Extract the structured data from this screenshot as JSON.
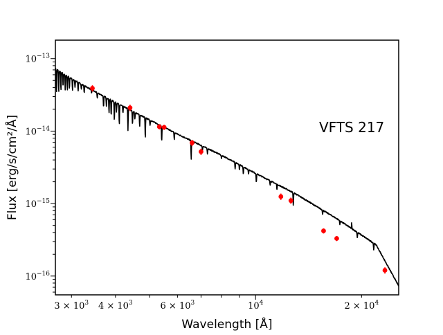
{
  "chart_data": {
    "type": "scatter",
    "title": "",
    "annotation": "VFTS 217",
    "xlabel": "Wavelength [Å]",
    "ylabel": "Flux [erg/s/cm²/Å]",
    "xscale": "log",
    "yscale": "log",
    "xlim": [
      2700,
      25500
    ],
    "ylim": [
      5.5e-17,
      1.8e-13
    ],
    "grid": false,
    "legend": "none",
    "xticks": [
      {
        "value": 3000,
        "base": "3 × 10",
        "exp": "3"
      },
      {
        "value": 4000,
        "base": "4 × 10",
        "exp": "3"
      },
      {
        "value": 6000,
        "base": "6 × 10",
        "exp": "3"
      },
      {
        "value": 10000,
        "base": "10",
        "exp": "4"
      },
      {
        "value": 20000,
        "base": "2 × 10",
        "exp": "4"
      }
    ],
    "yticks": [
      {
        "value": 1e-16,
        "base": "10",
        "exp": "−16"
      },
      {
        "value": 1e-15,
        "base": "10",
        "exp": "−15"
      },
      {
        "value": 1e-14,
        "base": "10",
        "exp": "−14"
      },
      {
        "value": 1e-13,
        "base": "10",
        "exp": "−13"
      }
    ],
    "series": [
      {
        "kind": "model_spectrum",
        "color": "#000000",
        "x": [
          2700,
          3000,
          3500,
          4500,
          6000,
          8000,
          10000,
          13000,
          17000,
          22000,
          25500
        ],
        "y": [
          7.3e-14,
          5.3e-14,
          3.5e-14,
          1.85e-14,
          9.1e-15,
          4.65e-15,
          2.62e-15,
          1.36e-15,
          6.2e-16,
          2.7e-16,
          7.3e-17
        ],
        "absorption_lines": [
          {
            "x": 2720,
            "depth": 0.55
          },
          {
            "x": 2760,
            "depth": 0.5
          },
          {
            "x": 2800,
            "depth": 0.45
          },
          {
            "x": 2840,
            "depth": 0.35
          },
          {
            "x": 2880,
            "depth": 0.4
          },
          {
            "x": 2920,
            "depth": 0.35
          },
          {
            "x": 2960,
            "depth": 0.3
          },
          {
            "x": 3020,
            "depth": 0.3
          },
          {
            "x": 3070,
            "depth": 0.2
          },
          {
            "x": 3133,
            "depth": 0.25
          },
          {
            "x": 3200,
            "depth": 0.15
          },
          {
            "x": 3260,
            "depth": 0.2
          },
          {
            "x": 3420,
            "depth": 0.12
          },
          {
            "x": 3550,
            "depth": 0.15
          },
          {
            "x": 3700,
            "depth": 0.3
          },
          {
            "x": 3770,
            "depth": 0.25
          },
          {
            "x": 3835,
            "depth": 0.35
          },
          {
            "x": 3889,
            "depth": 0.4
          },
          {
            "x": 3970,
            "depth": 0.45
          },
          {
            "x": 4026,
            "depth": 0.25
          },
          {
            "x": 4101,
            "depth": 0.5
          },
          {
            "x": 4200,
            "depth": 0.2
          },
          {
            "x": 4340,
            "depth": 0.5
          },
          {
            "x": 4471,
            "depth": 0.35
          },
          {
            "x": 4541,
            "depth": 0.2
          },
          {
            "x": 4686,
            "depth": 0.3
          },
          {
            "x": 4861,
            "depth": 0.5
          },
          {
            "x": 5015,
            "depth": 0.15
          },
          {
            "x": 5412,
            "depth": 0.4
          },
          {
            "x": 5876,
            "depth": 0.2
          },
          {
            "x": 6563,
            "depth": 0.45
          },
          {
            "x": 7065,
            "depth": 0.12
          },
          {
            "x": 7300,
            "depth": 0.15
          },
          {
            "x": 8000,
            "depth": 0.1
          },
          {
            "x": 8750,
            "depth": 0.2
          },
          {
            "x": 9000,
            "depth": 0.15
          },
          {
            "x": 9230,
            "depth": 0.2
          },
          {
            "x": 9550,
            "depth": 0.15
          },
          {
            "x": 10050,
            "depth": 0.25
          },
          {
            "x": 11000,
            "depth": 0.12
          },
          {
            "x": 11500,
            "depth": 0.15
          },
          {
            "x": 12800,
            "depth": 0.35
          },
          {
            "x": 15500,
            "depth": 0.12
          },
          {
            "x": 17360,
            "depth": 0.12
          },
          {
            "x": 18750,
            "depth": 0.2
          },
          {
            "x": 19450,
            "depth": 0.15
          },
          {
            "x": 21655,
            "depth": 0.2
          }
        ],
        "emission_lines": [
          {
            "x": 18750,
            "height": 0.5
          }
        ]
      },
      {
        "kind": "photometry",
        "color": "#ff0000",
        "marker": "circle",
        "x": [
          3440,
          4400,
          5330,
          5500,
          6600,
          7000,
          11800,
          12600,
          15600,
          17000,
          23300
        ],
        "y": [
          3.9e-14,
          2.1e-14,
          1.15e-14,
          1.13e-14,
          6.9e-15,
          5.2e-15,
          1.25e-15,
          1.1e-15,
          4.2e-16,
          3.3e-16,
          1.2e-16
        ],
        "yerr_frac": [
          0.1,
          0.1,
          0.08,
          0.08,
          0.1,
          0.1,
          0.1,
          0.1,
          0.08,
          0.08,
          0.1
        ]
      }
    ]
  }
}
